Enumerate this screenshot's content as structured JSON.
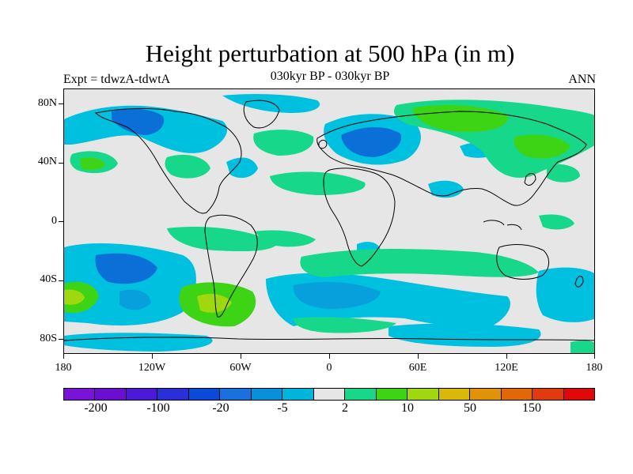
{
  "title": "Height perturbation at 500 hPa (in m)",
  "experiment_label": "Expt = tdwzA-tdwtA",
  "period_label": "030kyr BP - 030kyr BP",
  "season_label": "ANN",
  "lat_labels": [
    "80N",
    "40N",
    "0",
    "40S",
    "80S"
  ],
  "lon_labels": [
    "180",
    "120W",
    "60W",
    "0",
    "60E",
    "120E",
    "180"
  ],
  "colorbar": {
    "colors": [
      "#7b12d8",
      "#6a0fd0",
      "#4a1ad6",
      "#2a2fd8",
      "#0a4ad8",
      "#1a70dc",
      "#0890d8",
      "#00b5dc",
      "#e6e6e6",
      "#17d88a",
      "#3cd414",
      "#a0d810",
      "#d8b808",
      "#e09208",
      "#e06808",
      "#e03a10",
      "#e00808"
    ],
    "labels": [
      "-200",
      "-100",
      "-20",
      "-5",
      "2",
      "10",
      "50",
      "150"
    ]
  },
  "legend_colors": {
    "neg_strong": "#0a70d8",
    "neg_medium": "#08a0dc",
    "neg_weak": "#00c0e0",
    "neutral": "#e6e6e6",
    "pos_weak": "#17d88a",
    "pos_medium": "#3cd414",
    "pos_strong": "#a0d810"
  }
}
